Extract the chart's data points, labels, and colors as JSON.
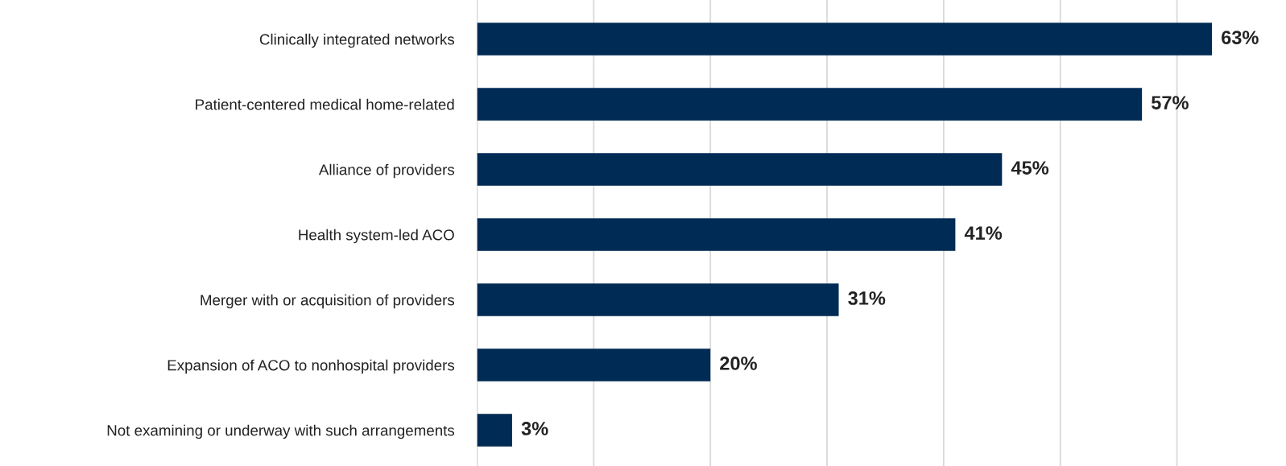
{
  "chart_data": {
    "type": "bar",
    "orientation": "horizontal",
    "categories": [
      "Clinically integrated networks",
      "Patient-centered medical home-related",
      "Alliance of providers",
      "Health system-led ACO",
      "Merger with or acquisition of providers",
      "Expansion of ACO to nonhospital providers",
      "Not examining or underway with such arrangements"
    ],
    "values": [
      63,
      57,
      45,
      41,
      31,
      20,
      3
    ],
    "color": "#002b54",
    "value_labels": [
      "63%",
      "57%",
      "45%",
      "41%",
      "31%",
      "20%",
      "3%"
    ],
    "xticks": [
      {
        "value": 0,
        "label": null
      },
      {
        "value": 10,
        "label": null
      },
      {
        "value": 20,
        "label": null
      },
      {
        "value": 30,
        "label": null
      },
      {
        "value": 40,
        "label": null
      },
      {
        "value": 50,
        "label": null
      },
      {
        "value": 60,
        "label": null
      }
    ],
    "grid": "x",
    "tick_labels": "y"
  }
}
